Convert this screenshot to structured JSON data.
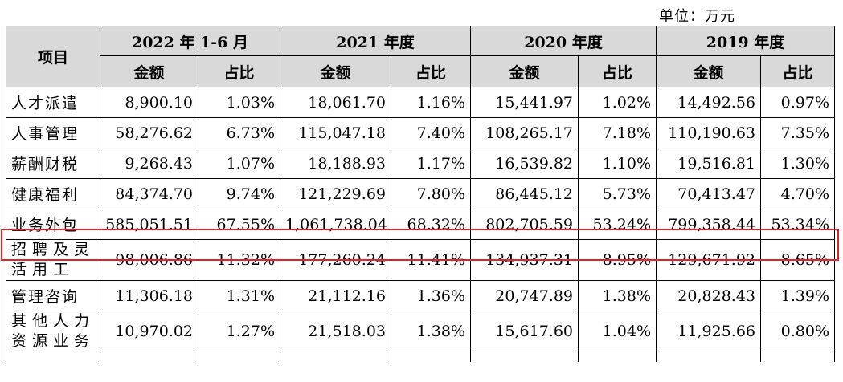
{
  "unit_label": "单位：万元",
  "header": {
    "item_label": "项目",
    "periods": [
      "2022 年 1-6 月",
      "2021 年度",
      "2020 年度",
      "2019 年度"
    ],
    "amount_label": "金额",
    "ratio_label": "占比"
  },
  "rows": [
    {
      "item": "人才派遣",
      "values": [
        "8,900.10",
        "1.03%",
        "18,061.70",
        "1.16%",
        "15,441.97",
        "1.02%",
        "14,492.56",
        "0.97%"
      ]
    },
    {
      "item": "人事管理",
      "values": [
        "58,276.62",
        "6.73%",
        "115,047.18",
        "7.40%",
        "108,265.17",
        "7.18%",
        "110,190.63",
        "7.35%"
      ]
    },
    {
      "item": "薪酬财税",
      "values": [
        "9,268.43",
        "1.07%",
        "18,188.93",
        "1.17%",
        "16,539.82",
        "1.10%",
        "19,516.81",
        "1.30%"
      ]
    },
    {
      "item": "健康福利",
      "values": [
        "84,374.70",
        "9.74%",
        "121,229.69",
        "7.80%",
        "86,445.12",
        "5.73%",
        "70,413.47",
        "4.70%"
      ]
    },
    {
      "item": "业务外包",
      "values": [
        "585,051.51",
        "67.55%",
        "1,061,738.04",
        "68.32%",
        "802,705.59",
        "53.24%",
        "799,358.44",
        "53.34%"
      ]
    },
    {
      "item": "招聘及灵活用工",
      "values": [
        "98,006.86",
        "11.32%",
        "177,260.24",
        "11.41%",
        "134,937.31",
        "8.95%",
        "129,671.92",
        "8.65%"
      ]
    },
    {
      "item": "管理咨询",
      "values": [
        "11,306.18",
        "1.31%",
        "21,112.16",
        "1.36%",
        "20,747.89",
        "1.38%",
        "20,828.43",
        "1.39%"
      ]
    },
    {
      "item": "其他人力资源业务",
      "values": [
        "10,970.02",
        "1.27%",
        "21,518.03",
        "1.38%",
        "15,617.60",
        "1.04%",
        "11,925.66",
        "0.80%"
      ]
    }
  ],
  "colors": {
    "header_bg": "#d9d9d9",
    "highlight": "#e8202a"
  }
}
